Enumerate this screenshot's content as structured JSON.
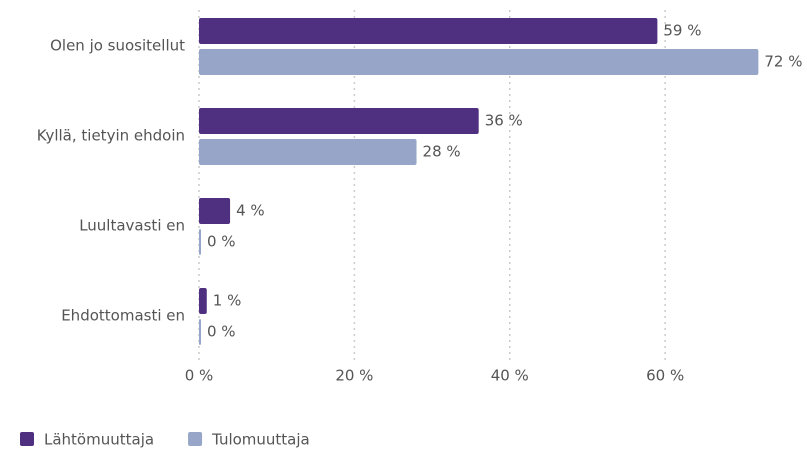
{
  "chart_data": {
    "type": "bar",
    "orientation": "horizontal",
    "categories": [
      "Olen jo suositellut",
      "Kyllä, tietyin ehdoin",
      "Luultavasti en",
      "Ehdottomasti en"
    ],
    "series": [
      {
        "name": "Lähtömuuttaja",
        "color": "#4f2f7f",
        "values": [
          59,
          36,
          4,
          1
        ],
        "value_labels": [
          "59 %",
          "36 %",
          "4 %",
          "1 %"
        ]
      },
      {
        "name": "Tulomuuttaja",
        "color": "#97a6c8",
        "values": [
          72,
          28,
          0,
          0
        ],
        "value_labels": [
          "72 %",
          "28 %",
          "0 %",
          "0 %"
        ]
      }
    ],
    "xlim": [
      0,
      78
    ],
    "xticks": [
      {
        "value": 0,
        "label": "0 %"
      },
      {
        "value": 20,
        "label": "20 %"
      },
      {
        "value": 40,
        "label": "40 %"
      },
      {
        "value": 60,
        "label": "60 %"
      }
    ],
    "grid": true,
    "legend": "bottom-left"
  }
}
